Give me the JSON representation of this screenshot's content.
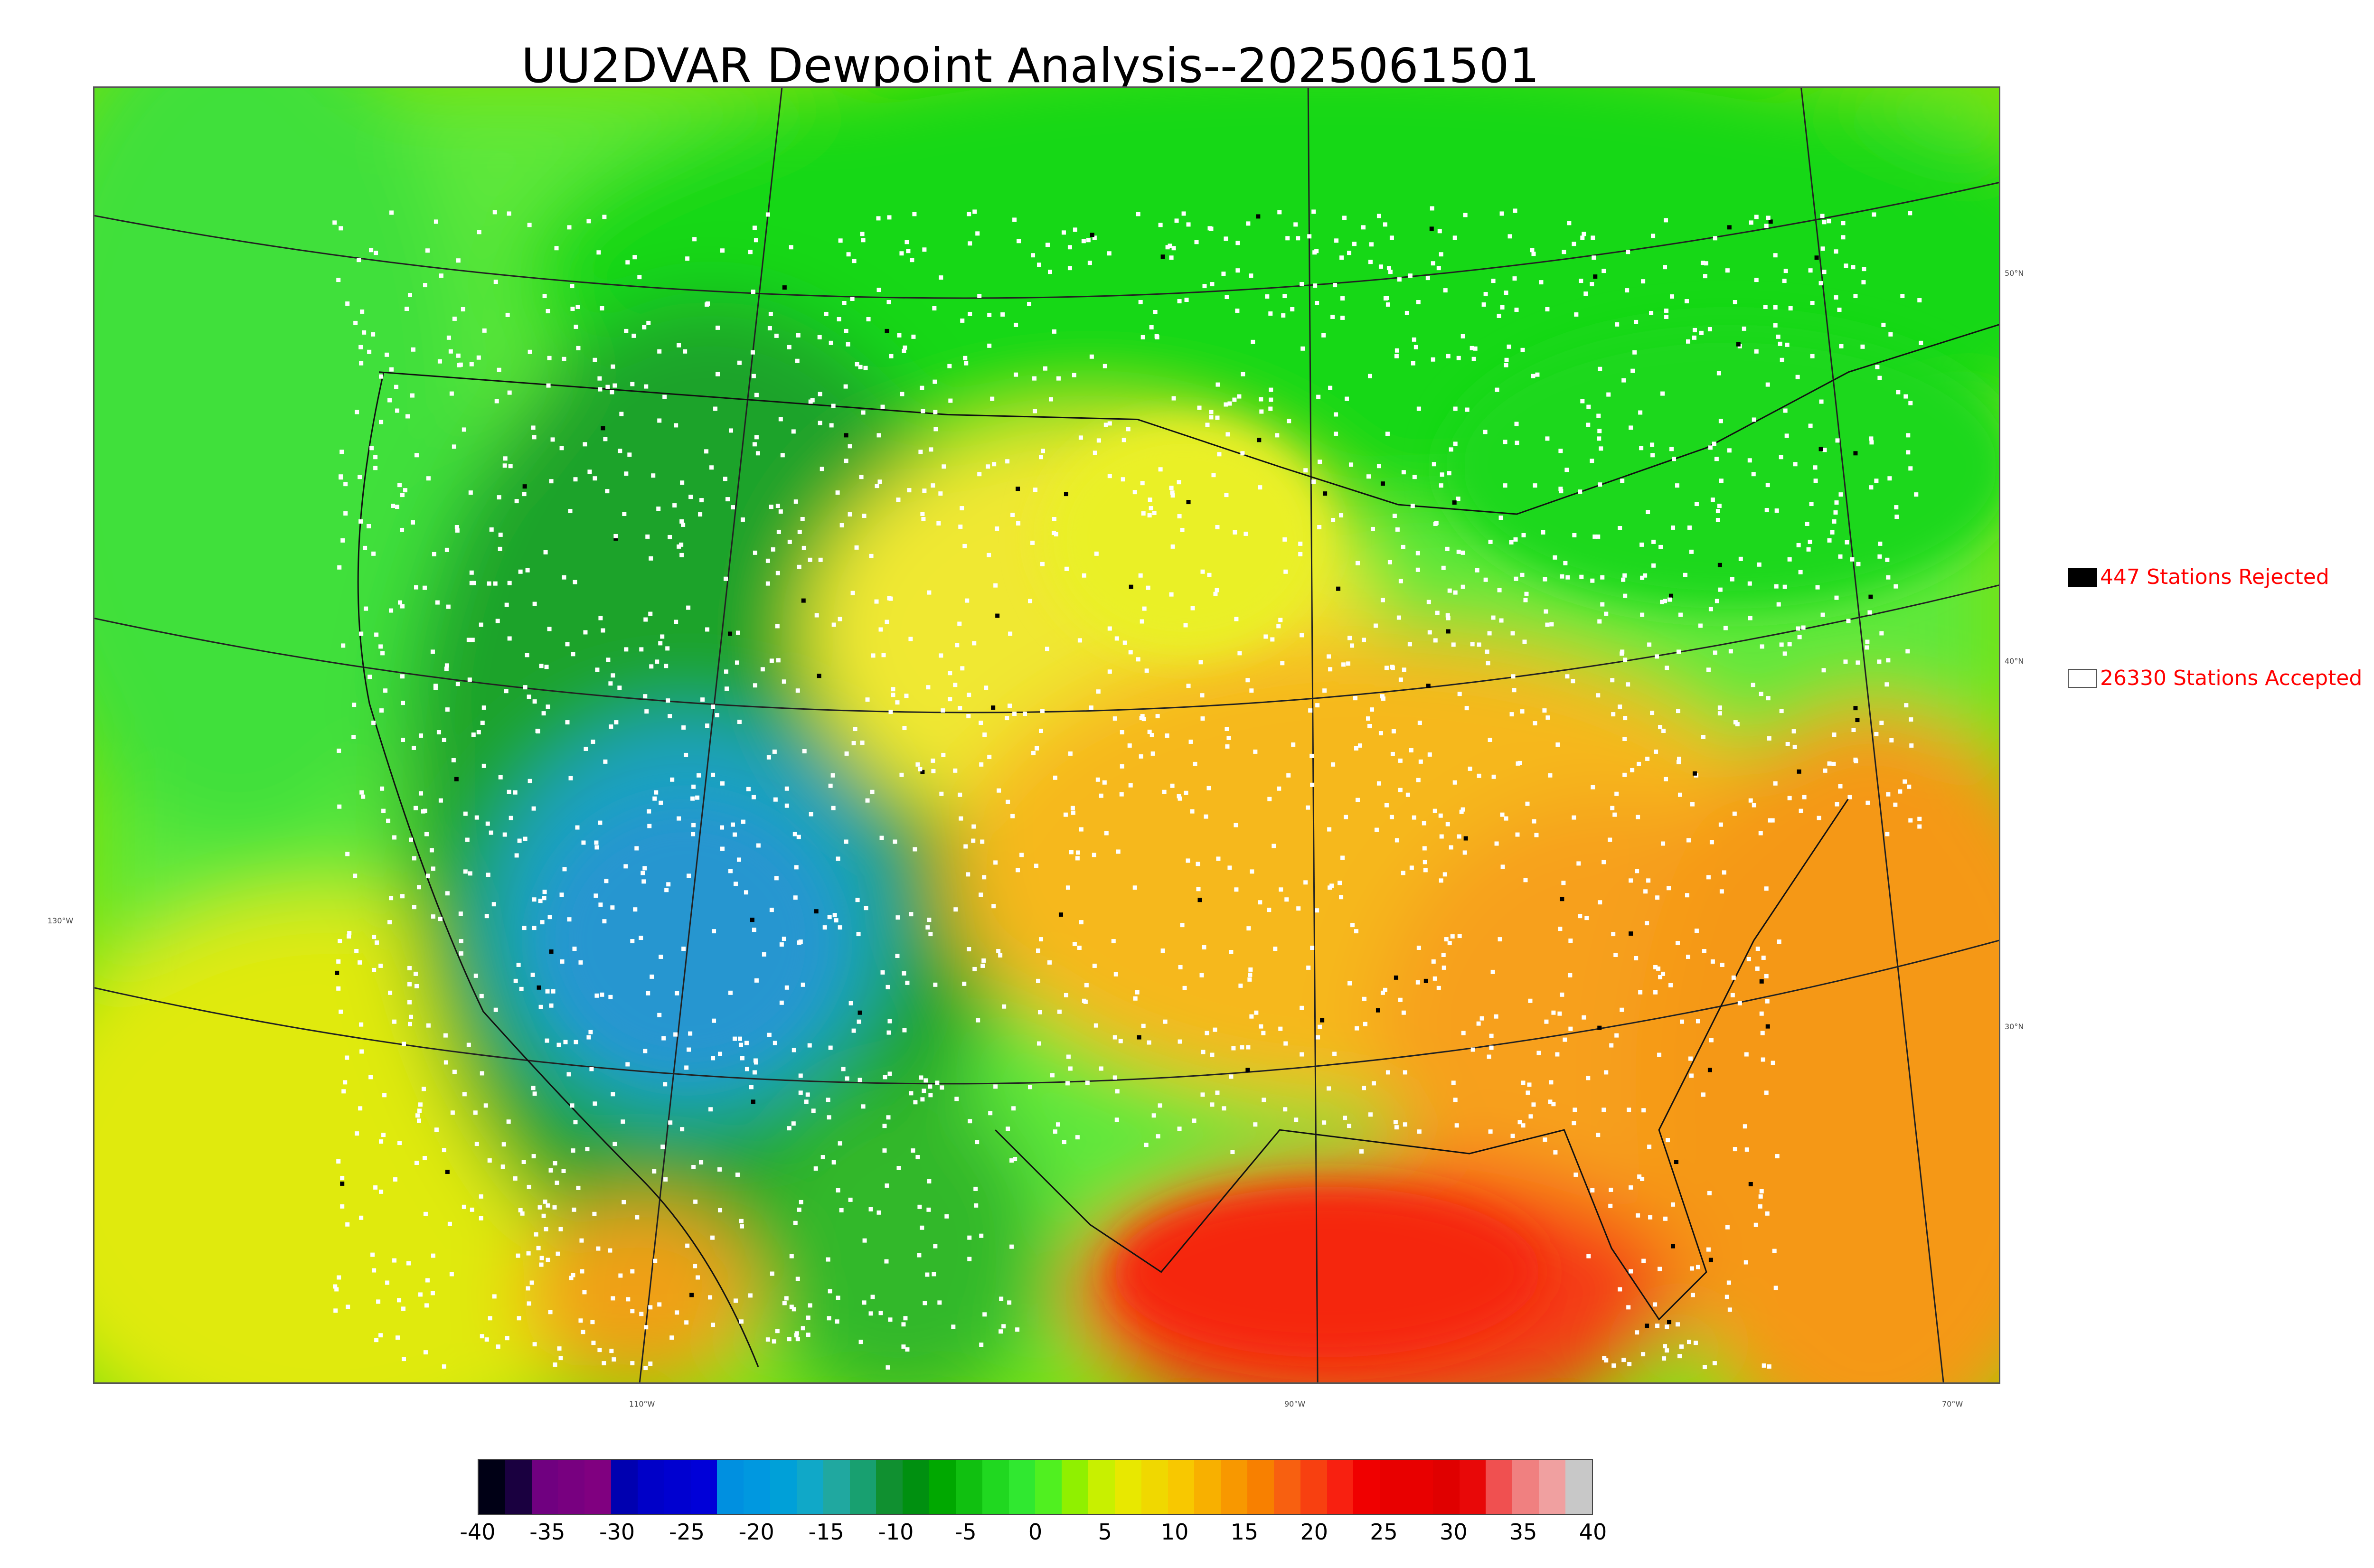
{
  "title": "UU2DVAR Dewpoint Analysis--2025061501",
  "map": {
    "lat_labels": [
      "50°N",
      "40°N",
      "30°N"
    ],
    "lon_labels": [
      "130°W",
      "110°W",
      "90°W",
      "70°W"
    ],
    "background_color": "#7fe000",
    "regions": [
      {
        "name": "pacific-north-green",
        "color": "#3fe63a"
      },
      {
        "name": "pacific-south-yellow",
        "color": "#d8f000"
      },
      {
        "name": "intermountain-dark-green",
        "color": "#17a82a"
      },
      {
        "name": "great-basin-blue",
        "color": "#1fa6c8"
      },
      {
        "name": "canada-green",
        "color": "#22e01a"
      },
      {
        "name": "great-plains-yellow",
        "color": "#f2e52a"
      },
      {
        "name": "central-orange",
        "color": "#f7b81c"
      },
      {
        "name": "southeast-orange",
        "color": "#f79818"
      },
      {
        "name": "gulf-red",
        "color": "#f5391a"
      },
      {
        "name": "atlantic-orange",
        "color": "#f59618"
      }
    ]
  },
  "legend": {
    "rejected": {
      "label": "447 Stations Rejected",
      "swatch_color": "#000000"
    },
    "accepted": {
      "label": "26330 Stations Accepted",
      "swatch_color": "#ffffff"
    }
  },
  "colorbar": {
    "ticks": [
      "-40",
      "-35",
      "-30",
      "-25",
      "-20",
      "-15",
      "-10",
      "-5",
      "0",
      "5",
      "10",
      "15",
      "20",
      "25",
      "30",
      "35",
      "40"
    ],
    "colors": [
      "#000015",
      "#1a0040",
      "#700080",
      "#780080",
      "#800080",
      "#0000b0",
      "#0000c8",
      "#0000d0",
      "#0000d8",
      "#0090e0",
      "#0098e0",
      "#00a0d8",
      "#10a8c8",
      "#20a8a0",
      "#18a070",
      "#109030",
      "#009010",
      "#00a800",
      "#10c010",
      "#20d820",
      "#30e830",
      "#50f020",
      "#90f000",
      "#c8f000",
      "#e8e800",
      "#f0d800",
      "#f8c800",
      "#f8b000",
      "#f89800",
      "#f88000",
      "#f86010",
      "#f84010",
      "#f82010",
      "#f00000",
      "#e80000",
      "#e80000",
      "#e00000",
      "#e80808",
      "#f05050",
      "#f08080",
      "#f0a0a0",
      "#c8c8c8"
    ]
  }
}
